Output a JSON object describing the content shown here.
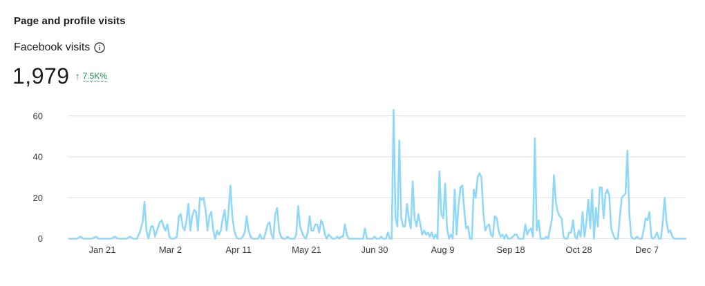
{
  "header": {
    "title": "Page and profile visits"
  },
  "metric": {
    "label": "Facebook visits",
    "value": "1,979",
    "change": "7.5K%",
    "change_direction": "up",
    "change_color": "#1e8c4a"
  },
  "icons": {
    "info": "info-icon",
    "trend": "arrow-up-icon"
  },
  "chart_data": {
    "type": "line",
    "title": "",
    "xlabel": "",
    "ylabel": "",
    "ylim": [
      0,
      66
    ],
    "yticks": [
      0,
      20,
      40,
      60
    ],
    "xtick_labels": [
      "Jan 21",
      "Mar 2",
      "Apr 11",
      "May 21",
      "Jun 30",
      "Aug 9",
      "Sep 18",
      "Oct 28",
      "Dec 7"
    ],
    "grid": true,
    "color": "#8fd8f8",
    "series": [
      {
        "name": "",
        "points": [
          [
            0,
            0
          ],
          [
            5,
            0
          ],
          [
            8,
            0
          ],
          [
            12,
            1
          ],
          [
            15,
            0
          ],
          [
            20,
            0
          ],
          [
            24,
            0
          ],
          [
            28,
            1
          ],
          [
            31,
            0
          ],
          [
            35,
            0
          ],
          [
            40,
            0
          ],
          [
            44,
            0
          ],
          [
            48,
            1
          ],
          [
            51,
            0
          ],
          [
            55,
            0
          ],
          [
            60,
            0
          ],
          [
            64,
            1
          ],
          [
            67,
            0
          ],
          [
            71,
            0
          ],
          [
            74,
            3
          ],
          [
            77,
            8
          ],
          [
            79,
            18
          ],
          [
            81,
            4
          ],
          [
            83,
            0
          ],
          [
            86,
            6
          ],
          [
            88,
            6
          ],
          [
            90,
            1
          ],
          [
            92,
            4
          ],
          [
            95,
            8
          ],
          [
            97,
            9
          ],
          [
            99,
            6
          ],
          [
            101,
            4
          ],
          [
            103,
            7
          ],
          [
            105,
            1
          ],
          [
            107,
            0
          ],
          [
            110,
            0
          ],
          [
            113,
            1
          ],
          [
            115,
            11
          ],
          [
            117,
            12
          ],
          [
            119,
            6
          ],
          [
            121,
            4
          ],
          [
            123,
            9
          ],
          [
            125,
            17
          ],
          [
            127,
            4
          ],
          [
            129,
            11
          ],
          [
            131,
            14
          ],
          [
            133,
            13
          ],
          [
            135,
            4
          ],
          [
            137,
            20
          ],
          [
            139,
            19
          ],
          [
            141,
            20
          ],
          [
            143,
            14
          ],
          [
            145,
            4
          ],
          [
            147,
            11
          ],
          [
            149,
            13
          ],
          [
            151,
            4
          ],
          [
            153,
            0
          ],
          [
            155,
            4
          ],
          [
            157,
            2
          ],
          [
            159,
            4
          ],
          [
            161,
            10
          ],
          [
            163,
            14
          ],
          [
            165,
            4
          ],
          [
            167,
            13
          ],
          [
            169,
            26
          ],
          [
            171,
            11
          ],
          [
            173,
            4
          ],
          [
            175,
            1
          ],
          [
            177,
            0
          ],
          [
            180,
            0
          ],
          [
            182,
            1
          ],
          [
            184,
            3
          ],
          [
            186,
            11
          ],
          [
            188,
            4
          ],
          [
            190,
            1
          ],
          [
            192,
            0
          ],
          [
            195,
            0
          ],
          [
            198,
            0
          ],
          [
            200,
            2
          ],
          [
            202,
            0
          ],
          [
            204,
            0
          ],
          [
            206,
            3
          ],
          [
            208,
            7
          ],
          [
            210,
            8
          ],
          [
            212,
            2
          ],
          [
            214,
            0
          ],
          [
            216,
            12
          ],
          [
            218,
            15
          ],
          [
            220,
            4
          ],
          [
            222,
            1
          ],
          [
            224,
            0
          ],
          [
            227,
            0
          ],
          [
            229,
            1
          ],
          [
            231,
            0
          ],
          [
            234,
            0
          ],
          [
            236,
            0
          ],
          [
            238,
            2
          ],
          [
            240,
            16
          ],
          [
            242,
            6
          ],
          [
            244,
            3
          ],
          [
            246,
            1
          ],
          [
            248,
            0
          ],
          [
            250,
            3
          ],
          [
            252,
            11
          ],
          [
            254,
            4
          ],
          [
            256,
            4
          ],
          [
            258,
            7
          ],
          [
            260,
            7
          ],
          [
            262,
            3
          ],
          [
            264,
            9
          ],
          [
            266,
            7
          ],
          [
            268,
            2
          ],
          [
            270,
            0
          ],
          [
            272,
            2
          ],
          [
            274,
            1
          ],
          [
            276,
            0
          ],
          [
            279,
            0
          ],
          [
            281,
            1
          ],
          [
            283,
            0
          ],
          [
            285,
            1
          ],
          [
            287,
            1
          ],
          [
            289,
            7
          ],
          [
            291,
            2
          ],
          [
            293,
            0
          ],
          [
            296,
            0
          ],
          [
            300,
            0
          ],
          [
            304,
            0
          ],
          [
            308,
            0
          ],
          [
            310,
            5
          ],
          [
            312,
            0
          ],
          [
            314,
            0
          ],
          [
            318,
            0
          ],
          [
            320,
            1
          ],
          [
            322,
            0
          ],
          [
            325,
            0
          ],
          [
            327,
            1
          ],
          [
            329,
            0
          ],
          [
            332,
            0
          ],
          [
            334,
            3
          ],
          [
            336,
            0
          ],
          [
            338,
            0
          ],
          [
            340,
            63
          ],
          [
            342,
            10
          ],
          [
            344,
            6
          ],
          [
            346,
            48
          ],
          [
            348,
            10
          ],
          [
            350,
            6
          ],
          [
            352,
            6
          ],
          [
            354,
            17
          ],
          [
            356,
            10
          ],
          [
            358,
            5
          ],
          [
            360,
            28
          ],
          [
            362,
            10
          ],
          [
            364,
            6
          ],
          [
            366,
            12
          ],
          [
            368,
            7
          ],
          [
            370,
            2
          ],
          [
            372,
            4
          ],
          [
            374,
            2
          ],
          [
            376,
            3
          ],
          [
            378,
            1
          ],
          [
            380,
            3
          ],
          [
            382,
            0
          ],
          [
            384,
            2
          ],
          [
            386,
            0
          ],
          [
            388,
            33
          ],
          [
            390,
            12
          ],
          [
            392,
            10
          ],
          [
            394,
            27
          ],
          [
            396,
            5
          ],
          [
            398,
            0
          ],
          [
            400,
            2
          ],
          [
            402,
            0
          ],
          [
            404,
            24
          ],
          [
            406,
            2
          ],
          [
            408,
            16
          ],
          [
            410,
            25
          ],
          [
            412,
            26
          ],
          [
            414,
            14
          ],
          [
            416,
            5
          ],
          [
            418,
            6
          ],
          [
            420,
            0
          ],
          [
            422,
            0
          ],
          [
            424,
            24
          ],
          [
            426,
            20
          ],
          [
            428,
            30
          ],
          [
            430,
            32
          ],
          [
            432,
            30
          ],
          [
            434,
            13
          ],
          [
            436,
            4
          ],
          [
            438,
            6
          ],
          [
            440,
            7
          ],
          [
            442,
            2
          ],
          [
            444,
            1
          ],
          [
            446,
            11
          ],
          [
            448,
            10
          ],
          [
            450,
            4
          ],
          [
            452,
            1
          ],
          [
            454,
            2
          ],
          [
            456,
            0
          ],
          [
            458,
            2
          ],
          [
            460,
            0
          ],
          [
            462,
            0
          ],
          [
            465,
            1
          ],
          [
            467,
            2
          ],
          [
            469,
            2
          ],
          [
            471,
            0
          ],
          [
            474,
            0
          ],
          [
            476,
            0
          ],
          [
            478,
            7
          ],
          [
            480,
            2
          ],
          [
            482,
            4
          ],
          [
            484,
            5
          ],
          [
            486,
            1
          ],
          [
            488,
            49
          ],
          [
            490,
            4
          ],
          [
            492,
            9
          ],
          [
            494,
            0
          ],
          [
            496,
            0
          ],
          [
            498,
            0
          ],
          [
            500,
            1
          ],
          [
            502,
            0
          ],
          [
            504,
            5
          ],
          [
            506,
            10
          ],
          [
            508,
            31
          ],
          [
            510,
            18
          ],
          [
            512,
            13
          ],
          [
            514,
            11
          ],
          [
            516,
            10
          ],
          [
            518,
            1
          ],
          [
            520,
            0
          ],
          [
            522,
            0
          ],
          [
            524,
            3
          ],
          [
            526,
            3
          ],
          [
            528,
            9
          ],
          [
            530,
            1
          ],
          [
            532,
            0
          ],
          [
            534,
            4
          ],
          [
            536,
            1
          ],
          [
            538,
            13
          ],
          [
            540,
            1
          ],
          [
            542,
            8
          ],
          [
            544,
            19
          ],
          [
            546,
            5
          ],
          [
            548,
            24
          ],
          [
            550,
            0
          ],
          [
            552,
            15
          ],
          [
            554,
            6
          ],
          [
            556,
            25
          ],
          [
            558,
            25
          ],
          [
            560,
            10
          ],
          [
            562,
            22
          ],
          [
            564,
            24
          ],
          [
            566,
            21
          ],
          [
            568,
            5
          ],
          [
            570,
            2
          ],
          [
            572,
            0
          ],
          [
            575,
            0
          ],
          [
            577,
            10
          ],
          [
            579,
            20
          ],
          [
            581,
            21
          ],
          [
            583,
            22
          ],
          [
            585,
            43
          ],
          [
            587,
            12
          ],
          [
            589,
            1
          ],
          [
            591,
            0
          ],
          [
            593,
            0
          ],
          [
            595,
            1
          ],
          [
            597,
            0
          ],
          [
            600,
            0
          ],
          [
            602,
            4
          ],
          [
            604,
            10
          ],
          [
            606,
            9
          ],
          [
            608,
            13
          ],
          [
            610,
            1
          ],
          [
            612,
            0
          ],
          [
            614,
            1
          ],
          [
            616,
            3
          ],
          [
            618,
            0
          ],
          [
            620,
            0
          ],
          [
            622,
            8
          ],
          [
            624,
            20
          ],
          [
            626,
            8
          ],
          [
            628,
            3
          ],
          [
            630,
            4
          ],
          [
            632,
            1
          ],
          [
            634,
            0
          ],
          [
            637,
            0
          ],
          [
            640,
            0
          ],
          [
            643,
            0
          ],
          [
            646,
            0
          ]
        ]
      }
    ]
  }
}
